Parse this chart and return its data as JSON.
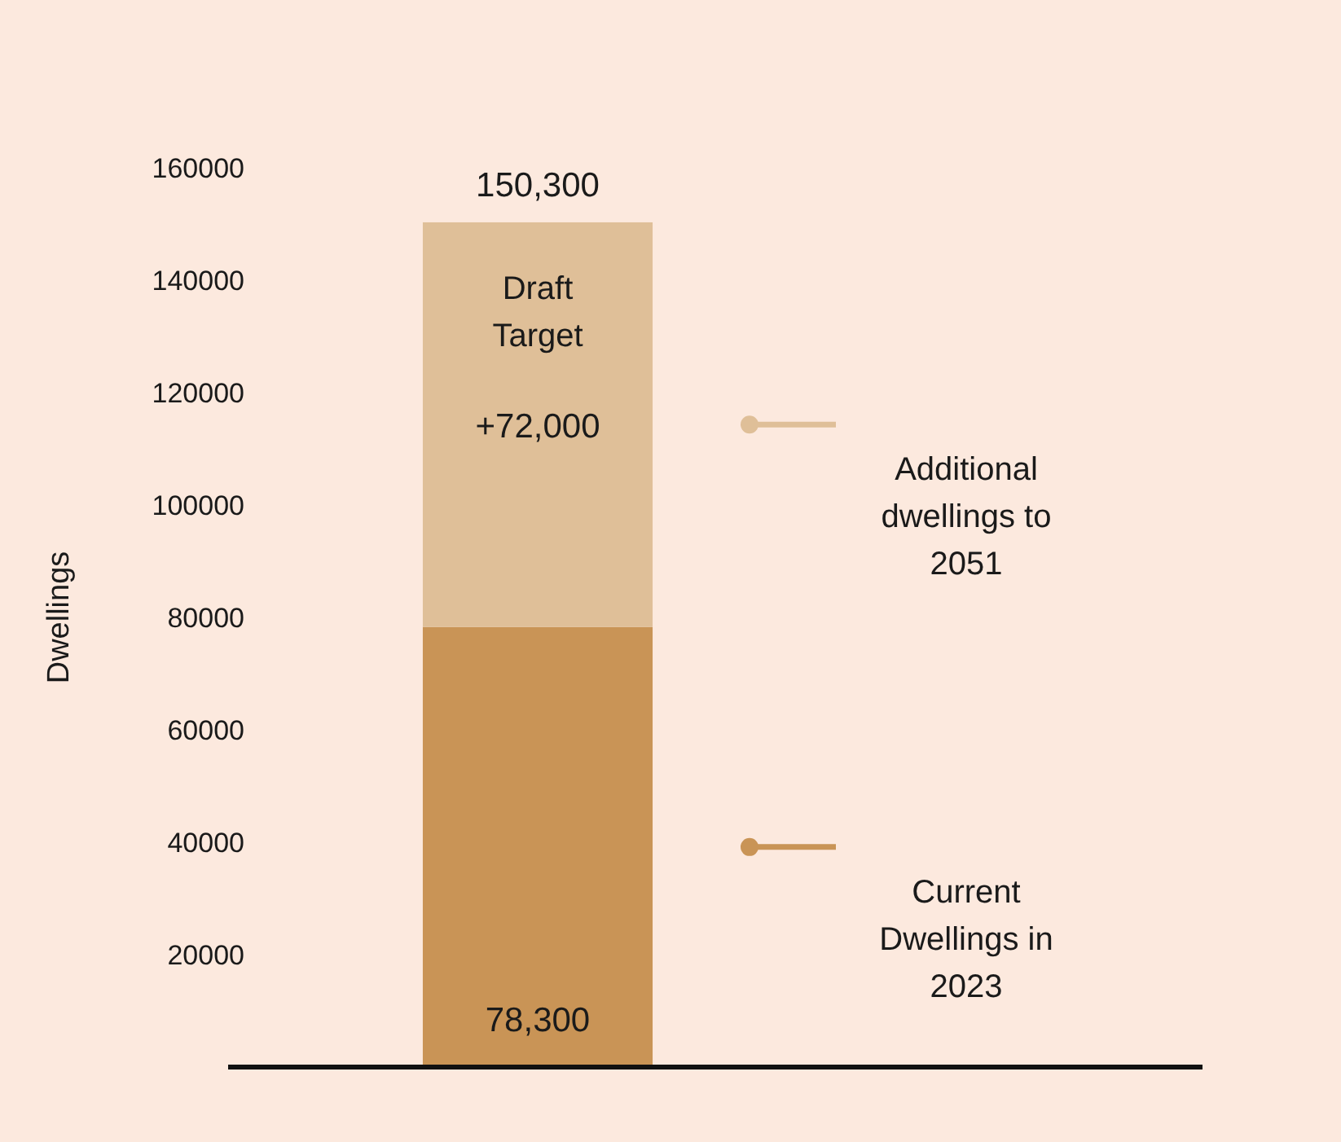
{
  "chart_data": {
    "type": "bar",
    "stacked": true,
    "ylabel": "Dwellings",
    "categories": [
      null
    ],
    "ylim": [
      0,
      160000
    ],
    "yticks": [
      20000,
      40000,
      60000,
      80000,
      100000,
      120000,
      140000,
      160000
    ],
    "series": [
      {
        "name": "Current Dwellings in 2023",
        "color": "#c99456",
        "values": [
          78300
        ],
        "value_labels": [
          "78,300"
        ]
      },
      {
        "name": "Additional dwellings to 2051",
        "color": "#dfbf98",
        "values": [
          72000
        ],
        "value_labels": [
          "+72,000"
        ]
      }
    ],
    "totals": [
      "150,300"
    ],
    "annotations": [
      "Draft Target"
    ],
    "legend": "right",
    "grid": false
  }
}
